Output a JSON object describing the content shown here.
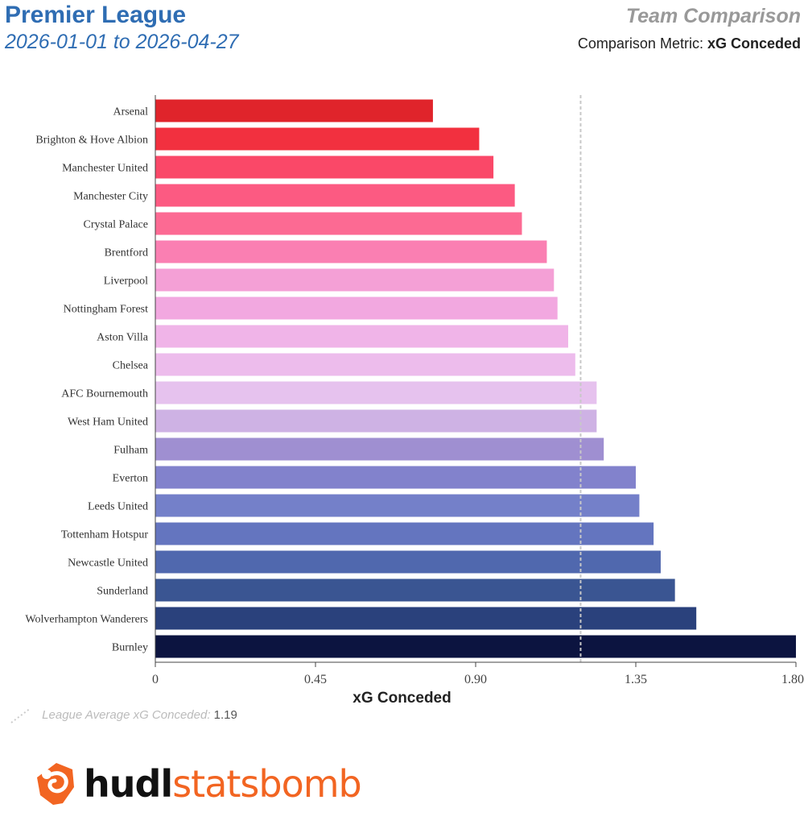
{
  "header": {
    "title": "Premier League",
    "date_range": "2026-01-01 to 2026-04-27",
    "panel_title": "Team Comparison",
    "metric_prefix": "Comparison Metric:",
    "metric_value": "xG Conceded"
  },
  "footer": {
    "avg_label": "League Average xG Conceded:",
    "avg_value": "1.19",
    "brand_hudl": "hudl",
    "brand_statsbomb": "statsbomb"
  },
  "chart_data": {
    "type": "bar",
    "orientation": "horizontal",
    "xlabel": "xG Conceded",
    "xlim": [
      0,
      1.8
    ],
    "xticks": [
      "0",
      "0.45",
      "0.90",
      "1.35",
      "1.80"
    ],
    "xtick_values": [
      0,
      0.45,
      0.9,
      1.35,
      1.8
    ],
    "reference_line": {
      "value": 1.195,
      "style": "dashed"
    },
    "categories": [
      "Arsenal",
      "Brighton & Hove Albion",
      "Manchester United",
      "Manchester City",
      "Crystal Palace",
      "Brentford",
      "Liverpool",
      "Nottingham Forest",
      "Aston Villa",
      "Chelsea",
      "AFC Bournemouth",
      "West Ham United",
      "Fulham",
      "Everton",
      "Leeds United",
      "Tottenham Hotspur",
      "Newcastle United",
      "Sunderland",
      "Wolverhampton Wanderers",
      "Burnley"
    ],
    "values": [
      0.78,
      0.91,
      0.95,
      1.01,
      1.03,
      1.1,
      1.12,
      1.13,
      1.16,
      1.18,
      1.24,
      1.24,
      1.26,
      1.35,
      1.36,
      1.4,
      1.42,
      1.46,
      1.52,
      1.8
    ],
    "colors": [
      "#e0242b",
      "#f2303f",
      "#fa4868",
      "#fc5a82",
      "#fc6a93",
      "#fa7fb2",
      "#f4a0d6",
      "#f2a8e0",
      "#f0b4e8",
      "#edbcec",
      "#e6c2ee",
      "#ceb2e4",
      "#9f8fd1",
      "#8282cc",
      "#7480c9",
      "#6475bf",
      "#5068ae",
      "#3a5592",
      "#2a417c",
      "#0c1440"
    ]
  }
}
